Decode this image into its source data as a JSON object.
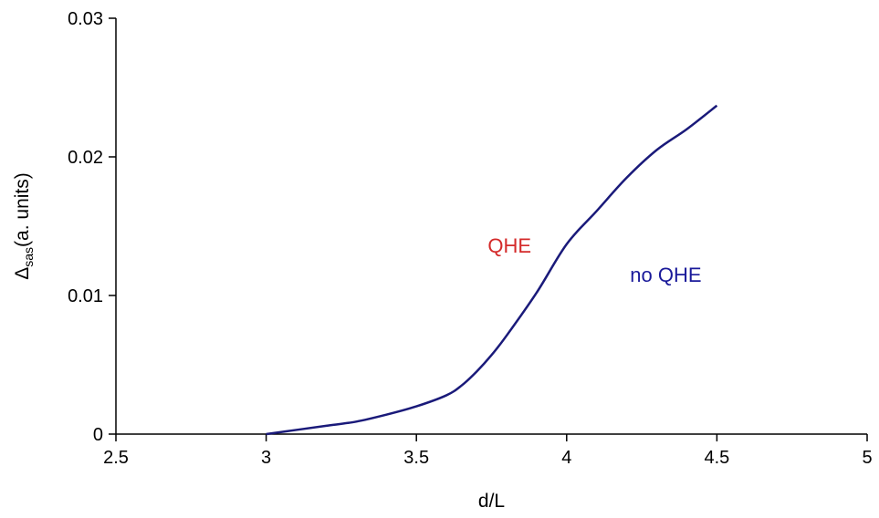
{
  "chart_data": {
    "type": "line",
    "xlabel": "d/L",
    "ylabel": {
      "symbol": "Δ",
      "subscript": "sas",
      "rest": "(a. units)"
    },
    "xlim": [
      2.5,
      5
    ],
    "ylim": [
      0,
      0.03
    ],
    "xticks": [
      2.5,
      3,
      3.5,
      4,
      4.5,
      5
    ],
    "xtick_labels": [
      "2.5",
      "3",
      "3.5",
      "4",
      "4.5",
      "5"
    ],
    "yticks": [
      0,
      0.01,
      0.02,
      0.03
    ],
    "ytick_labels": [
      "0",
      "0.01",
      "0.02",
      "0.03"
    ],
    "grid": false,
    "series": [
      {
        "color": "#1a1a7a",
        "x": [
          3.0,
          3.1,
          3.2,
          3.3,
          3.4,
          3.5,
          3.6,
          3.65,
          3.7,
          3.75,
          3.8,
          3.9,
          4.0,
          4.1,
          4.2,
          4.3,
          4.4,
          4.5
        ],
        "y": [
          0.0,
          0.0003,
          0.0006,
          0.0009,
          0.0014,
          0.002,
          0.0028,
          0.0035,
          0.0045,
          0.0057,
          0.0071,
          0.0102,
          0.0137,
          0.0161,
          0.0185,
          0.0205,
          0.022,
          0.0237
        ]
      }
    ],
    "annotations": [
      {
        "text": "QHE",
        "x": 3.81,
        "y": 0.0131,
        "color": "#d42a2a"
      },
      {
        "text": "no QHE",
        "x": 4.33,
        "y": 0.011,
        "color": "#1a1a9a"
      }
    ]
  }
}
